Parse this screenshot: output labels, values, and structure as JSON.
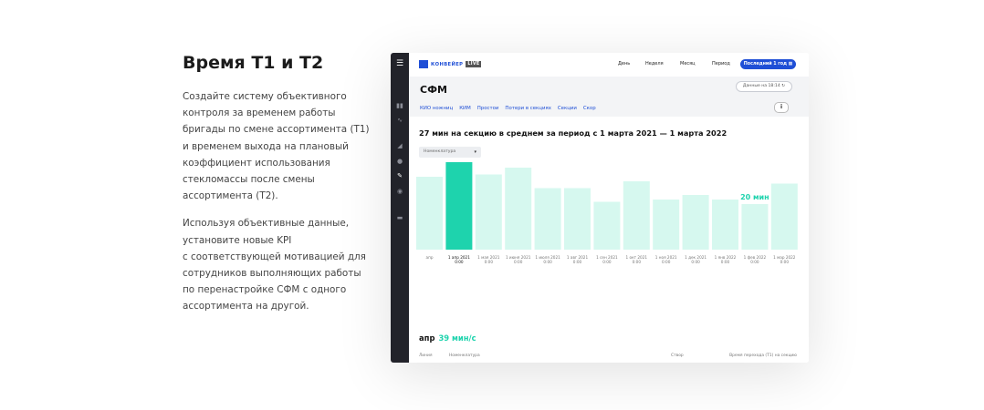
{
  "promo": {
    "heading": "Время Т1 и Т2",
    "paragraph1": [
      "Создайте систему объективного",
      "контроля за временем работы",
      "бригады по смене ассортимента (Т1)",
      "и временем выхода на плановый",
      "коэффициент использования",
      "стекломассы после смены",
      "ассортимента (Т2)."
    ],
    "paragraph2": [
      "Используя объективные данные,",
      "установите новые KPI",
      "с соответствующей мотивацией для",
      "сотрудников выполняющих работы",
      "по перенастройке СФМ с одного",
      "ассортимента на другой."
    ]
  },
  "app": {
    "logo_text": "КОНВЕЙЕР",
    "logo_badge": "LIVE",
    "periods": [
      "День",
      "Неделя",
      "Месяц",
      "Период"
    ],
    "period_active": "Последний 1 год",
    "page_title": "СФМ",
    "data_chip": "Данные на 18:14",
    "tabs": [
      "КИО ножниц",
      "КИМ",
      "Простои",
      "Потери в секциях",
      "Секции",
      "Скор"
    ],
    "info_label": "i",
    "summary": "27 мин на секцию в среднем за период с 1 марта 2021 — 1 марта 2022",
    "filter_label": "Номенклатура",
    "footer": {
      "label": "апр",
      "value": "39 мин/с",
      "columns": [
        "Линия",
        "Номенклатура",
        "Створ",
        "Время перехода (Т1) на секцию"
      ]
    },
    "colors": {
      "accent": "#1f4fd6",
      "bar_light": "#d6f8ef",
      "bar_selected": "#1ed3ad",
      "label_green": "#1ed3ad",
      "sidebar": "#22232a"
    },
    "sidebar_icons": [
      "menu-icon",
      "bar-chart-icon",
      "trend-icon",
      "funnel-icon",
      "drop-icon",
      "brush-icon",
      "eye-icon",
      "keyboard-icon"
    ]
  },
  "chart_data": {
    "type": "bar",
    "unit": "мин",
    "categories": [
      {
        "date": "апр",
        "time": ""
      },
      {
        "date": "1 апр 2021",
        "time": "0:00"
      },
      {
        "date": "1 мая 2021",
        "time": "0:00"
      },
      {
        "date": "1 июня 2021",
        "time": "0:00"
      },
      {
        "date": "1 июля 2021",
        "time": "0:00"
      },
      {
        "date": "1 авг 2021",
        "time": "0:00"
      },
      {
        "date": "1 сен 2021",
        "time": "0:00"
      },
      {
        "date": "1 окт 2021",
        "time": "0:00"
      },
      {
        "date": "1 ноя 2021",
        "time": "0:00"
      },
      {
        "date": "1 дек 2021",
        "time": "0:00"
      },
      {
        "date": "1 янв 2022",
        "time": "0:00"
      },
      {
        "date": "1 фев 2022",
        "time": "0:00"
      },
      {
        "date": "1 мар 2022",
        "time": "0:00"
      }
    ],
    "values": [
      32,
      39,
      33,
      36,
      27,
      27,
      21,
      30,
      22,
      24,
      22,
      20,
      29
    ],
    "selected_index": 1,
    "data_labels": [
      {
        "index": 1,
        "text": "39 мин"
      },
      {
        "index": 11,
        "text": "20 мин"
      }
    ],
    "ylim": [
      0,
      40
    ],
    "grid": false
  }
}
